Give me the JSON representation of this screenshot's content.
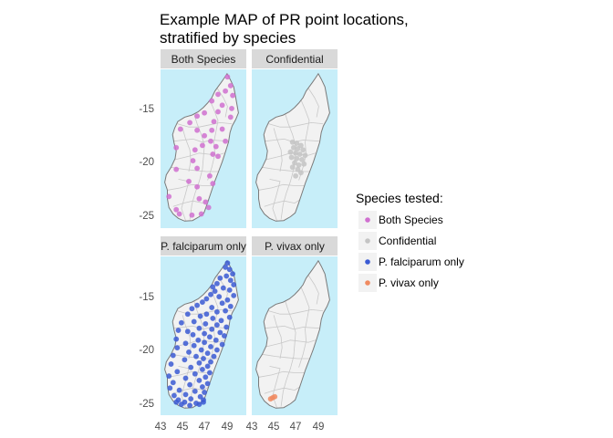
{
  "title_lines": [
    "Example MAP of PR point locations,",
    "stratified by species"
  ],
  "panels": [
    {
      "label": "Both Species",
      "species": "both"
    },
    {
      "label": "Confidential",
      "species": "confidential"
    },
    {
      "label": "P. falciparum only",
      "species": "falciparum"
    },
    {
      "label": "P. vivax only",
      "species": "vivax"
    }
  ],
  "legend": {
    "title": "Species tested:",
    "items": [
      {
        "label": "Both Species",
        "color": "#d070d0"
      },
      {
        "label": "Confidential",
        "color": "#c4c4c4"
      },
      {
        "label": "P. falciparum only",
        "color": "#3b5bd4"
      },
      {
        "label": "P. vivax only",
        "color": "#f08a60"
      }
    ]
  },
  "colors": {
    "ocean": "#c7eef9",
    "land": "#f2f2f2",
    "district_border": "#c8c8c8",
    "coast": "#7a7a7a",
    "strip": "#d9d9d9"
  },
  "chart_data": {
    "type": "scatter",
    "xlabel": "",
    "ylabel": "",
    "x_ticks": [
      43,
      45,
      47,
      49
    ],
    "y_ticks": [
      -15,
      -20,
      -25
    ],
    "xlim": [
      42.9,
      51.1
    ],
    "ylim": [
      -26.2,
      -11.6
    ],
    "series": [
      {
        "name": "Both Species",
        "color": "#d070d0",
        "points": [
          [
            49.3,
            -12.3
          ],
          [
            49.6,
            -13.1
          ],
          [
            49.1,
            -13.6
          ],
          [
            48.4,
            -13.9
          ],
          [
            49.8,
            -14.0
          ],
          [
            47.8,
            -14.5
          ],
          [
            48.8,
            -14.9
          ],
          [
            49.7,
            -15.2
          ],
          [
            47.1,
            -15.6
          ],
          [
            48.4,
            -15.5
          ],
          [
            46.4,
            -15.9
          ],
          [
            49.6,
            -16.0
          ],
          [
            48.0,
            -16.4
          ],
          [
            44.8,
            -17.1
          ],
          [
            45.7,
            -16.5
          ],
          [
            47.8,
            -17.2
          ],
          [
            48.8,
            -17.1
          ],
          [
            47.1,
            -17.7
          ],
          [
            46.4,
            -17.2
          ],
          [
            47.7,
            -18.2
          ],
          [
            46.9,
            -18.6
          ],
          [
            44.4,
            -18.8
          ],
          [
            49.1,
            -18.2
          ],
          [
            48.2,
            -18.7
          ],
          [
            46.2,
            -19.0
          ],
          [
            47.9,
            -19.4
          ],
          [
            48.4,
            -19.6
          ],
          [
            46.0,
            -20.0
          ],
          [
            44.4,
            -20.8
          ],
          [
            46.4,
            -20.7
          ],
          [
            47.6,
            -21.4
          ],
          [
            45.6,
            -21.9
          ],
          [
            46.4,
            -22.4
          ],
          [
            47.9,
            -22.1
          ],
          [
            43.7,
            -23.3
          ],
          [
            46.6,
            -23.5
          ],
          [
            47.2,
            -23.8
          ],
          [
            44.4,
            -24.5
          ],
          [
            44.7,
            -24.9
          ],
          [
            45.9,
            -25.0
          ],
          [
            46.8,
            -24.9
          ],
          [
            47.5,
            -24.3
          ]
        ]
      },
      {
        "name": "Confidential",
        "color": "#c4c4c4",
        "points": [
          [
            46.8,
            -18.3
          ],
          [
            47.2,
            -18.4
          ],
          [
            47.6,
            -18.6
          ],
          [
            46.9,
            -18.8
          ],
          [
            47.3,
            -18.9
          ],
          [
            47.8,
            -19.0
          ],
          [
            46.6,
            -19.2
          ],
          [
            47.1,
            -19.3
          ],
          [
            47.5,
            -19.4
          ],
          [
            48.0,
            -19.5
          ],
          [
            46.7,
            -19.7
          ],
          [
            47.2,
            -19.8
          ],
          [
            47.7,
            -19.9
          ],
          [
            47.0,
            -20.2
          ],
          [
            47.4,
            -20.4
          ],
          [
            47.9,
            -20.3
          ],
          [
            46.8,
            -20.6
          ],
          [
            47.3,
            -20.8
          ],
          [
            47.6,
            -21.1
          ],
          [
            47.1,
            -21.4
          ]
        ]
      },
      {
        "name": "P. falciparum only",
        "color": "#3b5bd4",
        "points": [
          [
            49.3,
            -12.2
          ],
          [
            49.1,
            -12.6
          ],
          [
            49.5,
            -12.8
          ],
          [
            49.8,
            -13.2
          ],
          [
            49.2,
            -13.4
          ],
          [
            48.6,
            -13.6
          ],
          [
            49.6,
            -13.8
          ],
          [
            48.3,
            -14.1
          ],
          [
            49.9,
            -14.2
          ],
          [
            47.9,
            -14.4
          ],
          [
            48.9,
            -14.5
          ],
          [
            49.5,
            -14.7
          ],
          [
            48.1,
            -14.8
          ],
          [
            47.7,
            -15.1
          ],
          [
            49.9,
            -15.2
          ],
          [
            48.5,
            -15.3
          ],
          [
            47.3,
            -15.5
          ],
          [
            49.3,
            -15.6
          ],
          [
            46.9,
            -15.8
          ],
          [
            48.8,
            -15.9
          ],
          [
            49.6,
            -16.2
          ],
          [
            46.4,
            -16.1
          ],
          [
            47.8,
            -16.3
          ],
          [
            45.9,
            -16.4
          ],
          [
            49.1,
            -16.6
          ],
          [
            48.3,
            -16.7
          ],
          [
            47.3,
            -16.9
          ],
          [
            45.5,
            -16.9
          ],
          [
            46.7,
            -17.1
          ],
          [
            49.5,
            -17.2
          ],
          [
            47.9,
            -17.3
          ],
          [
            48.7,
            -17.5
          ],
          [
            46.1,
            -17.6
          ],
          [
            44.9,
            -17.7
          ],
          [
            47.2,
            -17.8
          ],
          [
            48.3,
            -17.9
          ],
          [
            49.2,
            -18.1
          ],
          [
            46.6,
            -18.2
          ],
          [
            47.8,
            -18.3
          ],
          [
            44.6,
            -18.4
          ],
          [
            45.5,
            -18.5
          ],
          [
            48.6,
            -18.6
          ],
          [
            47.1,
            -18.7
          ],
          [
            46.0,
            -18.8
          ],
          [
            49.0,
            -18.9
          ],
          [
            47.6,
            -19.0
          ],
          [
            44.4,
            -19.2
          ],
          [
            46.5,
            -19.3
          ],
          [
            48.2,
            -19.3
          ],
          [
            47.1,
            -19.5
          ],
          [
            45.3,
            -19.6
          ],
          [
            48.8,
            -19.7
          ],
          [
            46.1,
            -19.8
          ],
          [
            47.7,
            -19.9
          ],
          [
            44.5,
            -20.0
          ],
          [
            46.8,
            -20.2
          ],
          [
            48.3,
            -20.2
          ],
          [
            45.6,
            -20.4
          ],
          [
            47.4,
            -20.5
          ],
          [
            44.1,
            -20.7
          ],
          [
            48.0,
            -20.8
          ],
          [
            46.3,
            -20.8
          ],
          [
            47.0,
            -21.0
          ],
          [
            45.2,
            -21.1
          ],
          [
            47.7,
            -21.3
          ],
          [
            46.6,
            -21.4
          ],
          [
            43.9,
            -21.5
          ],
          [
            47.4,
            -21.7
          ],
          [
            45.8,
            -21.8
          ],
          [
            46.9,
            -22.0
          ],
          [
            44.5,
            -22.2
          ],
          [
            47.6,
            -22.3
          ],
          [
            46.2,
            -22.4
          ],
          [
            43.7,
            -22.6
          ],
          [
            47.2,
            -22.7
          ],
          [
            45.3,
            -22.8
          ],
          [
            46.6,
            -23.0
          ],
          [
            44.1,
            -23.2
          ],
          [
            47.4,
            -23.3
          ],
          [
            45.7,
            -23.4
          ],
          [
            46.9,
            -23.6
          ],
          [
            43.8,
            -23.7
          ],
          [
            44.7,
            -23.9
          ],
          [
            46.2,
            -24.0
          ],
          [
            47.1,
            -24.1
          ],
          [
            45.3,
            -24.3
          ],
          [
            44.2,
            -24.4
          ],
          [
            46.7,
            -24.5
          ],
          [
            45.8,
            -24.7
          ],
          [
            44.6,
            -24.8
          ],
          [
            47.0,
            -24.8
          ],
          [
            45.2,
            -25.0
          ],
          [
            46.3,
            -25.1
          ],
          [
            44.9,
            -25.2
          ],
          [
            45.7,
            -25.3
          ],
          [
            46.6,
            -25.2
          ],
          [
            47.0,
            -25.0
          ],
          [
            44.4,
            -25.0
          ]
        ]
      },
      {
        "name": "P. vivax only",
        "color": "#f08a60",
        "points": [
          [
            44.9,
            -24.6
          ],
          [
            45.1,
            -24.5
          ],
          [
            44.7,
            -24.7
          ]
        ]
      }
    ]
  }
}
